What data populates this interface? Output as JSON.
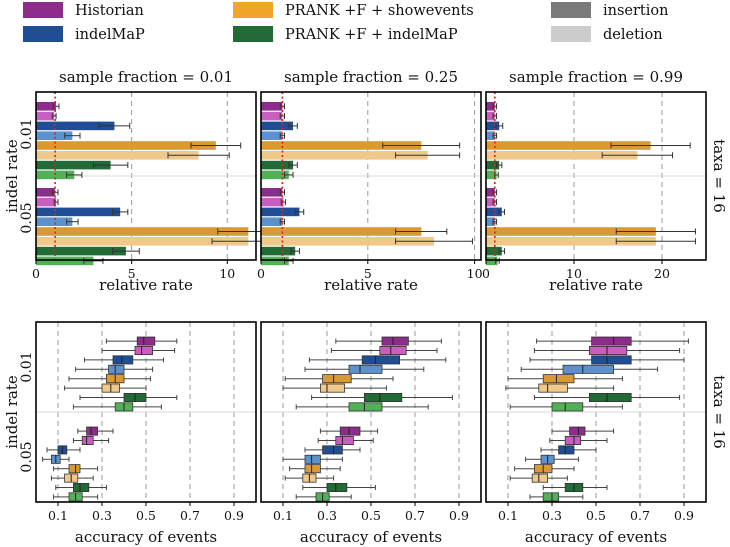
{
  "legend": [
    {
      "label": "Historian",
      "color": "#8e2c8c"
    },
    {
      "label": "indelMaP",
      "color": "#1f4e96"
    },
    {
      "label": "PRANK +F + showevents",
      "color": "#f2a52b"
    },
    {
      "label": "PRANK +F + indelMaP",
      "color": "#226a36"
    },
    {
      "label": "insertion",
      "color": "#7a7a7a"
    },
    {
      "label": "deletion",
      "color": "#cccccc"
    }
  ],
  "colors": {
    "Historian": [
      "#8e2c8c",
      "#c85fc0"
    ],
    "indelMaP": [
      "#1f4e96",
      "#5b92cc"
    ],
    "PRANK +F + showevents": [
      "#d99a35",
      "#f0c88a"
    ],
    "PRANK +F + indelMaP": [
      "#226a36",
      "#52b158"
    ],
    "true_line": "#e02020",
    "grid": "#999999"
  },
  "chart_data": [
    {
      "type": "bar",
      "orientation": "horizontal",
      "row": "rates",
      "title": "sample fraction = 0.01",
      "xlabel": "relative rate",
      "ylabel": "indel rate",
      "xlim": [
        0,
        11.5
      ],
      "xticks": [
        0,
        5,
        10
      ],
      "true_value": 1,
      "groups": [
        "0.01",
        "0.05"
      ],
      "side_label": "taxa = 16",
      "series": [
        {
          "method": "Historian",
          "event": "insertion",
          "values": [
            1.05,
            1.0
          ],
          "err": [
            0.15,
            0.15
          ]
        },
        {
          "method": "Historian",
          "event": "deletion",
          "values": [
            0.95,
            1.05
          ],
          "err": [
            0.1,
            0.1
          ]
        },
        {
          "method": "indelMaP",
          "event": "insertion",
          "values": [
            4.1,
            4.4
          ],
          "err": [
            0.8,
            0.4
          ]
        },
        {
          "method": "indelMaP",
          "event": "deletion",
          "values": [
            1.9,
            1.9
          ],
          "err": [
            0.4,
            0.3
          ]
        },
        {
          "method": "PRANK +F + showevents",
          "event": "insertion",
          "values": [
            9.4,
            11.1
          ],
          "err": [
            1.3,
            1.6
          ]
        },
        {
          "method": "PRANK +F + showevents",
          "event": "deletion",
          "values": [
            8.5,
            11.1
          ],
          "err": [
            1.6,
            1.9
          ]
        },
        {
          "method": "PRANK +F + indelMaP",
          "event": "insertion",
          "values": [
            3.9,
            4.7
          ],
          "err": [
            0.9,
            0.7
          ]
        },
        {
          "method": "PRANK +F + indelMaP",
          "event": "deletion",
          "values": [
            2.0,
            3.0
          ],
          "err": [
            0.4,
            0.5
          ]
        }
      ]
    },
    {
      "type": "bar",
      "orientation": "horizontal",
      "row": "rates",
      "title": "sample fraction = 0.25",
      "xlabel": "relative rate",
      "ylabel": "indel rate",
      "xlim": [
        0,
        10.3
      ],
      "xticks": [
        0,
        5,
        10
      ],
      "true_value": 1,
      "groups": [
        "0.01",
        "0.05"
      ],
      "side_label": "taxa = 16",
      "series": [
        {
          "method": "Historian",
          "event": "insertion",
          "values": [
            1.0,
            1.0
          ],
          "err": [
            0.1,
            0.1
          ]
        },
        {
          "method": "Historian",
          "event": "deletion",
          "values": [
            1.0,
            1.05
          ],
          "err": [
            0.1,
            0.1
          ]
        },
        {
          "method": "indelMaP",
          "event": "insertion",
          "values": [
            1.5,
            1.8
          ],
          "err": [
            0.2,
            0.2
          ]
        },
        {
          "method": "indelMaP",
          "event": "deletion",
          "values": [
            1.0,
            1.0
          ],
          "err": [
            0.1,
            0.1
          ]
        },
        {
          "method": "PRANK +F + showevents",
          "event": "insertion",
          "values": [
            7.5,
            7.5
          ],
          "err": [
            1.8,
            1.2
          ]
        },
        {
          "method": "PRANK +F + showevents",
          "event": "deletion",
          "values": [
            7.8,
            8.1
          ],
          "err": [
            1.5,
            1.8
          ]
        },
        {
          "method": "PRANK +F + indelMaP",
          "event": "insertion",
          "values": [
            1.5,
            1.6
          ],
          "err": [
            0.2,
            0.2
          ]
        },
        {
          "method": "PRANK +F + indelMaP",
          "event": "deletion",
          "values": [
            1.3,
            1.3
          ],
          "err": [
            0.2,
            0.2
          ]
        }
      ]
    },
    {
      "type": "bar",
      "orientation": "horizontal",
      "row": "rates",
      "title": "sample fraction = 0.99",
      "xlabel": "relative rate",
      "ylabel": "indel rate",
      "xlim": [
        0,
        25
      ],
      "xticks": [
        0,
        10,
        20
      ],
      "true_value": 1,
      "groups": [
        "0.01",
        "0.05"
      ],
      "side_label": "taxa = 16",
      "series": [
        {
          "method": "Historian",
          "event": "insertion",
          "values": [
            1.0,
            1.0
          ],
          "err": [
            0.2,
            0.2
          ]
        },
        {
          "method": "Historian",
          "event": "deletion",
          "values": [
            1.0,
            1.0
          ],
          "err": [
            0.2,
            0.2
          ]
        },
        {
          "method": "indelMaP",
          "event": "insertion",
          "values": [
            1.5,
            1.8
          ],
          "err": [
            0.4,
            0.3
          ]
        },
        {
          "method": "indelMaP",
          "event": "deletion",
          "values": [
            1.0,
            1.0
          ],
          "err": [
            0.2,
            0.2
          ]
        },
        {
          "method": "PRANK +F + showevents",
          "event": "insertion",
          "values": [
            18.7,
            19.3
          ],
          "err": [
            4.5,
            4.5
          ]
        },
        {
          "method": "PRANK +F + showevents",
          "event": "deletion",
          "values": [
            17.2,
            19.3
          ],
          "err": [
            4.0,
            4.5
          ]
        },
        {
          "method": "PRANK +F + indelMaP",
          "event": "insertion",
          "values": [
            1.5,
            1.8
          ],
          "err": [
            0.3,
            0.3
          ]
        },
        {
          "method": "PRANK +F + indelMaP",
          "event": "deletion",
          "values": [
            1.2,
            1.3
          ],
          "err": [
            0.2,
            0.2
          ]
        }
      ]
    },
    {
      "type": "box",
      "orientation": "horizontal",
      "row": "accuracy",
      "xlabel": "accuracy of events",
      "ylabel": "indel rate",
      "xlim": [
        0,
        1.0
      ],
      "xticks": [
        0.1,
        0.3,
        0.5,
        0.7,
        0.9
      ],
      "xtick_labels": [
        "0.1",
        "0.3",
        "0.5",
        "0.7",
        "0.9"
      ],
      "groups": [
        "0.01",
        "0.05"
      ],
      "side_label": "taxa = 16",
      "series": [
        {
          "method": "Historian",
          "event": "insertion",
          "boxes": [
            [
              0.32,
              0.46,
              0.49,
              0.54,
              0.64
            ],
            [
              0.19,
              0.23,
              0.25,
              0.28,
              0.35
            ]
          ]
        },
        {
          "method": "Historian",
          "event": "deletion",
          "boxes": [
            [
              0.3,
              0.45,
              0.48,
              0.53,
              0.63
            ],
            [
              0.17,
              0.21,
              0.23,
              0.26,
              0.33
            ]
          ]
        },
        {
          "method": "indelMaP",
          "event": "insertion",
          "boxes": [
            [
              0.22,
              0.35,
              0.39,
              0.44,
              0.58
            ],
            [
              0.05,
              0.1,
              0.12,
              0.14,
              0.2
            ]
          ]
        },
        {
          "method": "indelMaP",
          "event": "deletion",
          "boxes": [
            [
              0.18,
              0.33,
              0.36,
              0.4,
              0.53
            ],
            [
              0.03,
              0.07,
              0.09,
              0.11,
              0.15
            ]
          ]
        },
        {
          "method": "PRANK +F + showevents",
          "event": "insertion",
          "boxes": [
            [
              0.15,
              0.32,
              0.36,
              0.4,
              0.52
            ],
            [
              0.08,
              0.15,
              0.18,
              0.2,
              0.28
            ]
          ]
        },
        {
          "method": "PRANK +F + showevents",
          "event": "deletion",
          "boxes": [
            [
              0.13,
              0.3,
              0.34,
              0.38,
              0.5
            ],
            [
              0.07,
              0.13,
              0.16,
              0.19,
              0.26
            ]
          ]
        },
        {
          "method": "PRANK +F + indelMaP",
          "event": "insertion",
          "boxes": [
            [
              0.2,
              0.4,
              0.45,
              0.5,
              0.64
            ],
            [
              0.09,
              0.17,
              0.2,
              0.24,
              0.32
            ]
          ]
        },
        {
          "method": "PRANK +F + indelMaP",
          "event": "deletion",
          "boxes": [
            [
              0.17,
              0.36,
              0.4,
              0.44,
              0.57
            ],
            [
              0.08,
              0.15,
              0.18,
              0.21,
              0.28
            ]
          ]
        }
      ]
    },
    {
      "type": "box",
      "orientation": "horizontal",
      "row": "accuracy",
      "xlabel": "accuracy of events",
      "ylabel": "indel rate",
      "xlim": [
        0,
        1.0
      ],
      "xticks": [
        0.1,
        0.3,
        0.5,
        0.7,
        0.9
      ],
      "xtick_labels": [
        "0.1",
        "0.3",
        "0.5",
        "0.7",
        "0.9"
      ],
      "groups": [
        "0.01",
        "0.05"
      ],
      "side_label": "taxa = 16",
      "series": [
        {
          "method": "Historian",
          "event": "insertion",
          "boxes": [
            [
              0.34,
              0.55,
              0.6,
              0.67,
              0.82
            ],
            [
              0.27,
              0.36,
              0.4,
              0.45,
              0.53
            ]
          ]
        },
        {
          "method": "Historian",
          "event": "deletion",
          "boxes": [
            [
              0.32,
              0.54,
              0.59,
              0.66,
              0.8
            ],
            [
              0.26,
              0.34,
              0.37,
              0.42,
              0.51
            ]
          ]
        },
        {
          "method": "indelMaP",
          "event": "insertion",
          "boxes": [
            [
              0.22,
              0.46,
              0.52,
              0.63,
              0.84
            ],
            [
              0.2,
              0.28,
              0.33,
              0.37,
              0.45
            ]
          ]
        },
        {
          "method": "indelMaP",
          "event": "deletion",
          "boxes": [
            [
              0.2,
              0.4,
              0.45,
              0.55,
              0.74
            ],
            [
              0.1,
              0.2,
              0.23,
              0.27,
              0.37
            ]
          ]
        },
        {
          "method": "PRANK +F + showevents",
          "event": "insertion",
          "boxes": [
            [
              0.11,
              0.28,
              0.33,
              0.41,
              0.6
            ],
            [
              0.13,
              0.2,
              0.23,
              0.27,
              0.36
            ]
          ]
        },
        {
          "method": "PRANK +F + showevents",
          "event": "deletion",
          "boxes": [
            [
              0.1,
              0.27,
              0.3,
              0.38,
              0.57
            ],
            [
              0.11,
              0.19,
              0.22,
              0.25,
              0.33
            ]
          ]
        },
        {
          "method": "PRANK +F + indelMaP",
          "event": "insertion",
          "boxes": [
            [
              0.23,
              0.47,
              0.54,
              0.64,
              0.87
            ],
            [
              0.19,
              0.3,
              0.34,
              0.39,
              0.52
            ]
          ]
        },
        {
          "method": "PRANK +F + indelMaP",
          "event": "deletion",
          "boxes": [
            [
              0.16,
              0.4,
              0.47,
              0.55,
              0.76
            ],
            [
              0.16,
              0.25,
              0.28,
              0.31,
              0.41
            ]
          ]
        }
      ]
    },
    {
      "type": "box",
      "orientation": "horizontal",
      "row": "accuracy",
      "xlabel": "accuracy of events",
      "ylabel": "indel rate",
      "xlim": [
        0,
        1.0
      ],
      "xticks": [
        0.1,
        0.3,
        0.5,
        0.7,
        0.9
      ],
      "xtick_labels": [
        "0.1",
        "0.3",
        "0.5",
        "0.7",
        "0.9"
      ],
      "groups": [
        "0.01",
        "0.05"
      ],
      "side_label": "taxa = 16",
      "series": [
        {
          "method": "Historian",
          "event": "insertion",
          "boxes": [
            [
              0.23,
              0.48,
              0.58,
              0.66,
              0.92
            ],
            [
              0.3,
              0.38,
              0.42,
              0.45,
              0.58
            ]
          ]
        },
        {
          "method": "Historian",
          "event": "deletion",
          "boxes": [
            [
              0.22,
              0.47,
              0.55,
              0.64,
              0.88
            ],
            [
              0.29,
              0.36,
              0.4,
              0.43,
              0.55
            ]
          ]
        },
        {
          "method": "indelMaP",
          "event": "insertion",
          "boxes": [
            [
              0.2,
              0.48,
              0.55,
              0.66,
              0.9
            ],
            [
              0.25,
              0.33,
              0.36,
              0.4,
              0.5
            ]
          ]
        },
        {
          "method": "indelMaP",
          "event": "deletion",
          "boxes": [
            [
              0.16,
              0.35,
              0.44,
              0.58,
              0.78
            ],
            [
              0.18,
              0.25,
              0.28,
              0.31,
              0.42
            ]
          ]
        },
        {
          "method": "PRANK +F + showevents",
          "event": "insertion",
          "boxes": [
            [
              0.1,
              0.26,
              0.32,
              0.4,
              0.62
            ],
            [
              0.13,
              0.22,
              0.26,
              0.3,
              0.4
            ]
          ]
        },
        {
          "method": "PRANK +F + showevents",
          "event": "deletion",
          "boxes": [
            [
              0.09,
              0.24,
              0.28,
              0.37,
              0.58
            ],
            [
              0.11,
              0.21,
              0.24,
              0.28,
              0.37
            ]
          ]
        },
        {
          "method": "PRANK +F + indelMaP",
          "event": "insertion",
          "boxes": [
            [
              0.22,
              0.47,
              0.55,
              0.66,
              0.88
            ],
            [
              0.26,
              0.36,
              0.4,
              0.44,
              0.55
            ]
          ]
        },
        {
          "method": "PRANK +F + indelMaP",
          "event": "deletion",
          "boxes": [
            [
              0.11,
              0.3,
              0.36,
              0.44,
              0.62
            ],
            [
              0.2,
              0.26,
              0.3,
              0.33,
              0.44
            ]
          ]
        }
      ]
    }
  ]
}
